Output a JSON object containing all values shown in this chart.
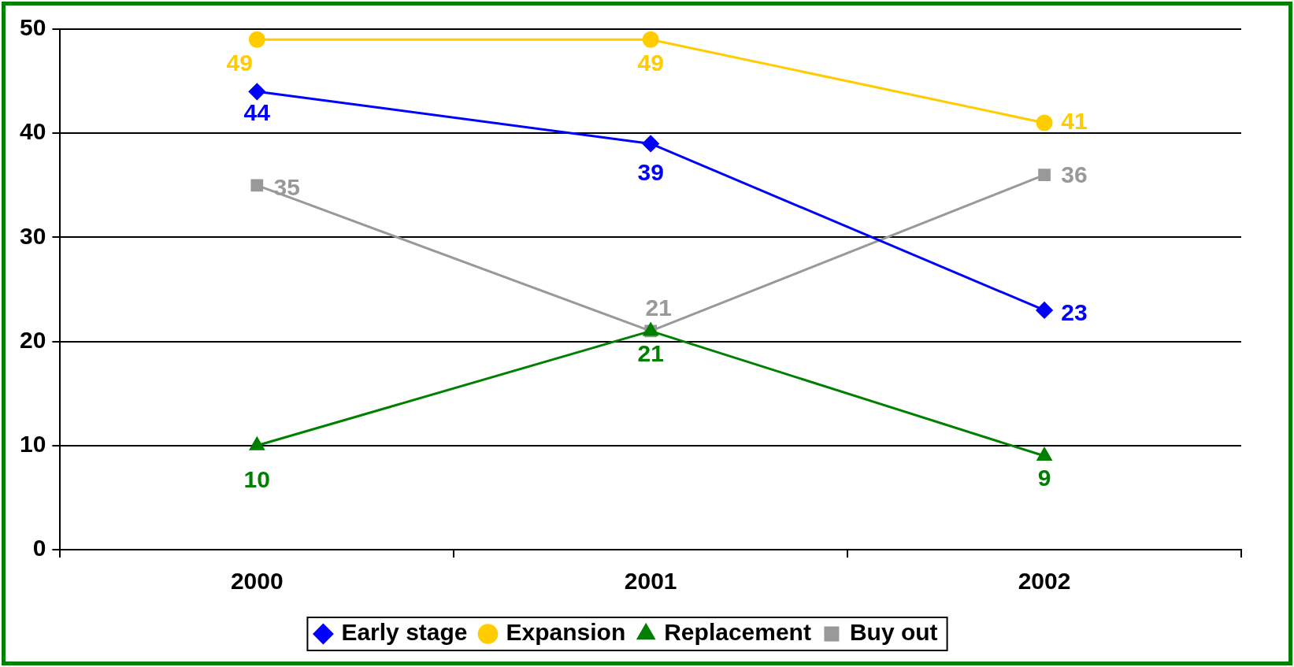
{
  "chart_data": {
    "type": "line",
    "categories": [
      "2000",
      "2001",
      "2002"
    ],
    "series": [
      {
        "name": "Early stage",
        "color": "#0000ff",
        "marker": "diamond",
        "values": [
          44,
          39,
          23
        ]
      },
      {
        "name": "Expansion",
        "color": "#ffcc00",
        "marker": "circle",
        "values": [
          49,
          49,
          41
        ]
      },
      {
        "name": "Replacement",
        "color": "#008000",
        "marker": "triangle",
        "values": [
          10,
          21,
          9
        ]
      },
      {
        "name": "Buy out",
        "color": "#999999",
        "marker": "square",
        "values": [
          35,
          21,
          36
        ]
      }
    ],
    "ylim": [
      0,
      50
    ],
    "yticks": [
      0,
      10,
      20,
      30,
      40,
      50
    ],
    "grid": "y",
    "legend": "bottom",
    "data_labels": true
  }
}
